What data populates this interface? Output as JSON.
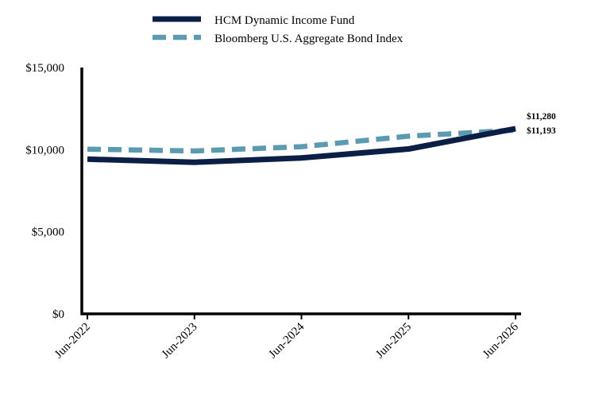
{
  "chart_data": {
    "type": "line",
    "title": "",
    "xlabel": "",
    "ylabel": "",
    "categories": [
      "Jun-2022",
      "Jun-2023",
      "Jun-2024",
      "Jun-2025",
      "Jun-2026"
    ],
    "ylim": [
      0,
      15000
    ],
    "yticks": [
      0,
      5000,
      10000,
      15000
    ],
    "ytick_labels": [
      "$0",
      "$5,000",
      "$10,000",
      "$15,000"
    ],
    "grid": false,
    "legend_position": "top",
    "series": [
      {
        "name": "HCM Dynamic Income Fund",
        "values": [
          9420,
          9230,
          9500,
          10040,
          11280
        ],
        "end_label": "$11,280",
        "color": "#0a1e46",
        "style": "solid"
      },
      {
        "name": "Bloomberg U.S. Aggregate Bond Index",
        "values": [
          10030,
          9920,
          10180,
          10820,
          11193
        ],
        "end_label": "$11,193",
        "color": "#5b9bb2",
        "style": "dashed"
      }
    ]
  }
}
